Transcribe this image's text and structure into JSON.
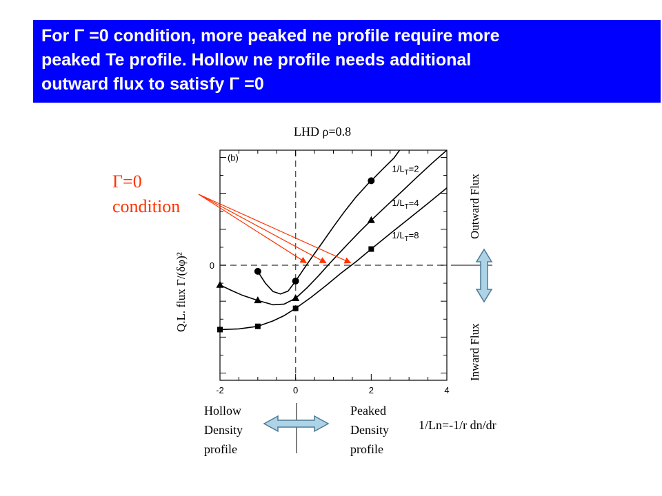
{
  "slide": {
    "title_lines": [
      "For Γ =0 condition,  more peaked ne profile  require more",
      "peaked Te profile. Hollow ne profile needs additional",
      "outward flux to satisfy Γ =0"
    ],
    "gamma_condition": [
      "Γ=0",
      "condition"
    ],
    "outward_flux": "Outward Flux",
    "inward_flux": "Inward Flux",
    "hollow_lines": [
      "Hollow",
      "Density",
      "profile"
    ],
    "peaked_lines": [
      "Peaked",
      "Density",
      "profile"
    ],
    "xformula": "1/Ln=-1/r dn/dr",
    "colors": {
      "title_bg": "#0000ff",
      "title_text": "#ffffff",
      "accent": "#ff3300",
      "arrow_fill": "#aed2e6",
      "arrow_stroke": "#4a7a96"
    }
  },
  "chart_data": {
    "type": "line",
    "title": "LHD ρ=0.8",
    "panel_label": "(b)",
    "ylabel": "Q.L. flux Γ/(δφ)²",
    "xlim": [
      -2,
      4
    ],
    "ylim": [
      -3.2,
      3.2
    ],
    "xticks": [
      -2,
      0,
      2,
      4
    ],
    "yticks": [
      0
    ],
    "zero_lines": true,
    "series": [
      {
        "name": "1/L T=2",
        "marker": "circle",
        "points": [
          [
            -1,
            -0.17
          ],
          [
            0,
            -0.44
          ]
        ],
        "curve": [
          [
            -1,
            -0.17
          ],
          [
            -0.8,
            -0.5
          ],
          [
            -0.6,
            -0.73
          ],
          [
            -0.4,
            -0.8
          ],
          [
            -0.2,
            -0.72
          ],
          [
            0,
            -0.44
          ],
          [
            0.2,
            -0.13
          ],
          [
            0.45,
            0.25
          ],
          [
            0.7,
            0.62
          ],
          [
            1,
            1.07
          ],
          [
            1.3,
            1.5
          ],
          [
            1.6,
            1.9
          ],
          [
            1.9,
            2.25
          ],
          [
            2,
            2.35
          ],
          [
            2.3,
            2.67
          ],
          [
            2.6,
            2.98
          ],
          [
            2.75,
            3.2
          ]
        ],
        "marker_points": [
          [
            -1,
            -0.17
          ],
          [
            0,
            -0.44
          ],
          [
            2,
            2.35
          ]
        ],
        "label_x": 2.55,
        "label_y": 2.6
      },
      {
        "name": "1/L T=4",
        "marker": "triangle",
        "points": [
          [
            -2,
            -0.55
          ],
          [
            -1,
            -0.98
          ],
          [
            0,
            -0.92
          ],
          [
            2,
            1.25
          ]
        ],
        "curve": [
          [
            -2,
            -0.55
          ],
          [
            -1.7,
            -0.7
          ],
          [
            -1.4,
            -0.84
          ],
          [
            -1,
            -0.98
          ],
          [
            -0.6,
            -1.1
          ],
          [
            -0.3,
            -1.08
          ],
          [
            0,
            -0.92
          ],
          [
            0.3,
            -0.63
          ],
          [
            0.6,
            -0.3
          ],
          [
            0.9,
            0.05
          ],
          [
            1.3,
            0.5
          ],
          [
            1.7,
            0.94
          ],
          [
            2,
            1.25
          ],
          [
            2.4,
            1.65
          ],
          [
            2.8,
            2.04
          ],
          [
            3.2,
            2.44
          ],
          [
            3.6,
            2.83
          ],
          [
            4,
            3.2
          ]
        ],
        "marker_points": [
          [
            -2,
            -0.55
          ],
          [
            -1,
            -0.98
          ],
          [
            0,
            -0.92
          ],
          [
            2,
            1.25
          ]
        ],
        "label_x": 2.55,
        "label_y": 1.65
      },
      {
        "name": "1/L T=8",
        "marker": "square",
        "points": [
          [
            -2,
            -1.79
          ],
          [
            -1,
            -1.7
          ],
          [
            0,
            -1.2
          ],
          [
            2,
            0.45
          ]
        ],
        "curve": [
          [
            -2,
            -1.79
          ],
          [
            -1.5,
            -1.77
          ],
          [
            -1,
            -1.7
          ],
          [
            -0.6,
            -1.55
          ],
          [
            -0.3,
            -1.4
          ],
          [
            0,
            -1.2
          ],
          [
            0.4,
            -0.9
          ],
          [
            0.8,
            -0.57
          ],
          [
            1.2,
            -0.22
          ],
          [
            1.6,
            0.1
          ],
          [
            2,
            0.45
          ],
          [
            2.5,
            0.88
          ],
          [
            3,
            1.3
          ],
          [
            3.5,
            1.72
          ],
          [
            4,
            2.15
          ]
        ],
        "marker_points": [
          [
            -2,
            -1.79
          ],
          [
            -1,
            -1.7
          ],
          [
            0,
            -1.2
          ],
          [
            2,
            0.45
          ]
        ],
        "label_x": 2.55,
        "label_y": 0.75
      }
    ],
    "annotation_targets": [
      [
        0.28,
        0.03
      ],
      [
        0.8,
        0.03
      ],
      [
        1.45,
        0.03
      ]
    ]
  }
}
